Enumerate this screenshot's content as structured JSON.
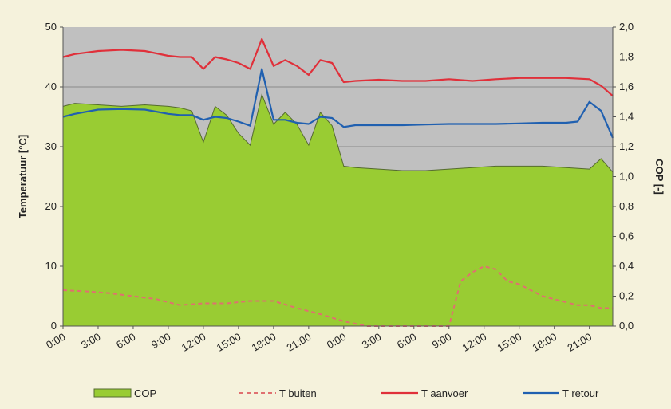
{
  "chart_data": {
    "type": "area",
    "title": "",
    "ylabel_left": "Temperatuur [°C]",
    "ylabel_right": "COP [-]",
    "ylim_left": [
      0,
      50
    ],
    "ylim_right": [
      0,
      2.0
    ],
    "yticks_left": [
      "0",
      "10",
      "20",
      "30",
      "40",
      "50"
    ],
    "yticks_right": [
      "0,0",
      "0,2",
      "0,4",
      "0,6",
      "0,8",
      "1,0",
      "1,2",
      "1,4",
      "1,6",
      "1,8",
      "2,0"
    ],
    "x_tick_labels": [
      "0:00",
      "3:00",
      "6:00",
      "9:00",
      "12:00",
      "15:00",
      "18:00",
      "21:00",
      "0:00",
      "3:00",
      "6:00",
      "9:00",
      "12:00",
      "15:00",
      "18:00",
      "21:00"
    ],
    "x_range_hours": [
      0,
      47
    ],
    "grid": "horizontal at 40 and 30 °C",
    "plot_background": "#c0c0c0",
    "legend_position": "bottom",
    "series": [
      {
        "name": "COP",
        "style": "area",
        "axis": "right",
        "color": "#99cc33",
        "x": [
          0,
          1,
          3,
          5,
          7,
          9,
          10,
          11,
          12,
          13,
          14,
          15,
          16,
          17,
          18,
          19,
          20,
          21,
          22,
          23,
          24,
          25,
          27,
          29,
          31,
          33,
          35,
          37,
          39,
          41,
          43,
          45,
          46,
          47
        ],
        "values": [
          1.47,
          1.49,
          1.48,
          1.47,
          1.48,
          1.47,
          1.46,
          1.44,
          1.23,
          1.47,
          1.41,
          1.29,
          1.21,
          1.55,
          1.35,
          1.43,
          1.35,
          1.21,
          1.43,
          1.34,
          1.07,
          1.06,
          1.05,
          1.04,
          1.04,
          1.05,
          1.06,
          1.07,
          1.07,
          1.07,
          1.06,
          1.05,
          1.12,
          1.03
        ]
      },
      {
        "name": "T buiten",
        "style": "dashed",
        "axis": "left",
        "color": "#e07070",
        "x": [
          0,
          2,
          4,
          6,
          8,
          10,
          12,
          14,
          16,
          18,
          20,
          22,
          24,
          26,
          28,
          30,
          31,
          32,
          33,
          34,
          35,
          36,
          37,
          38,
          39,
          40,
          41,
          42,
          43,
          44,
          45,
          46,
          47
        ],
        "values": [
          6,
          5.8,
          5.5,
          5,
          4.5,
          3.5,
          3.8,
          3.8,
          4.2,
          4.2,
          3,
          2,
          0.8,
          0,
          0,
          0,
          0,
          0,
          0,
          7.5,
          9,
          10,
          9.5,
          7.5,
          7,
          6,
          5,
          4.5,
          4,
          3.5,
          3.5,
          3,
          3
        ]
      },
      {
        "name": "T aanvoer",
        "style": "line",
        "axis": "left",
        "color": "#e0303a",
        "x": [
          0,
          1,
          3,
          5,
          7,
          9,
          10,
          11,
          12,
          13,
          14,
          15,
          16,
          17,
          18,
          19,
          20,
          21,
          22,
          23,
          24,
          25,
          27,
          29,
          31,
          33,
          35,
          37,
          39,
          41,
          43,
          45,
          46,
          47
        ],
        "values": [
          45,
          45.5,
          46,
          46.2,
          46,
          45.2,
          45,
          45,
          43,
          45,
          44.6,
          44,
          43,
          48,
          43.5,
          44.5,
          43.5,
          42,
          44.5,
          44,
          40.8,
          41,
          41.2,
          41,
          41,
          41.3,
          41,
          41.3,
          41.5,
          41.5,
          41.5,
          41.3,
          40.2,
          38.5
        ]
      },
      {
        "name": "T retour",
        "style": "line",
        "axis": "left",
        "color": "#2060b0",
        "x": [
          0,
          1,
          3,
          5,
          7,
          9,
          10,
          11,
          12,
          13,
          14,
          15,
          16,
          17,
          18,
          19,
          20,
          21,
          22,
          23,
          24,
          25,
          27,
          29,
          31,
          33,
          35,
          37,
          39,
          41,
          43,
          44,
          45,
          46,
          47
        ],
        "values": [
          35,
          35.5,
          36.2,
          36.3,
          36.2,
          35.5,
          35.3,
          35.3,
          34.5,
          35,
          34.8,
          34.2,
          33.5,
          43,
          34.5,
          34.5,
          34,
          33.8,
          35,
          34.8,
          33.3,
          33.6,
          33.6,
          33.6,
          33.7,
          33.8,
          33.8,
          33.8,
          33.9,
          34,
          34,
          34.2,
          37.5,
          36,
          31.5
        ]
      }
    ]
  }
}
